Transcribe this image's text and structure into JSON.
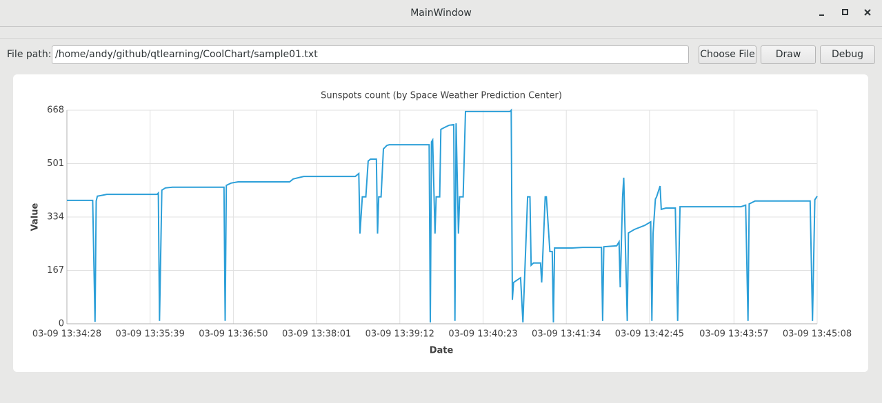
{
  "window": {
    "title": "MainWindow"
  },
  "form": {
    "file_label": "File path:",
    "file_path": "/home/andy/github/qtlearning/CoolChart/sample01.txt",
    "buttons": [
      "Choose File",
      "Draw",
      "Debug"
    ]
  },
  "chart_data": {
    "type": "line",
    "title": "Sunspots count (by Space Weather Prediction Center)",
    "x_label": "Date",
    "y_label": "Value",
    "color": "#2c9fd8",
    "grid": true,
    "xlim": [
      "03-09 13:34:28",
      "03-09 13:45:08"
    ],
    "xticks": [
      "03-09 13:34:28",
      "03-09 13:35:39",
      "03-09 13:36:50",
      "03-09 13:38:01",
      "03-09 13:39:12",
      "03-09 13:40:23",
      "03-09 13:41:34",
      "03-09 13:42:45",
      "03-09 13:43:57",
      "03-09 13:45:08"
    ],
    "ylim": [
      0,
      668
    ],
    "yticks": [
      0,
      167,
      334,
      501,
      668
    ],
    "x": [
      "03-09 13:34:28",
      "03-09 13:34:50",
      "03-09 13:34:52",
      "03-09 13:34:53",
      "03-09 13:34:54",
      "03-09 13:34:57",
      "03-09 13:35:02",
      "03-09 13:35:45",
      "03-09 13:35:46",
      "03-09 13:35:47",
      "03-09 13:35:49",
      "03-09 13:35:52",
      "03-09 13:35:58",
      "03-09 13:36:42",
      "03-09 13:36:43",
      "03-09 13:36:44",
      "03-09 13:36:48",
      "03-09 13:36:54",
      "03-09 13:37:38",
      "03-09 13:37:41",
      "03-09 13:37:50",
      "03-09 13:38:34",
      "03-09 13:38:37",
      "03-09 13:38:38",
      "03-09 13:38:40",
      "03-09 13:38:43",
      "03-09 13:38:45",
      "03-09 13:38:47",
      "03-09 13:38:52",
      "03-09 13:38:53",
      "03-09 13:38:54",
      "03-09 13:38:56",
      "03-09 13:38:58",
      "03-09 13:39:01",
      "03-09 13:39:03",
      "03-09 13:39:37",
      "03-09 13:39:38",
      "03-09 13:39:39",
      "03-09 13:39:40",
      "03-09 13:39:42",
      "03-09 13:39:43",
      "03-09 13:39:46",
      "03-09 13:39:47",
      "03-09 13:39:50",
      "03-09 13:39:54",
      "03-09 13:39:58",
      "03-09 13:39:59",
      "03-09 13:40:00",
      "03-09 13:40:02",
      "03-09 13:40:03",
      "03-09 13:40:06",
      "03-09 13:40:08",
      "03-09 13:40:46",
      "03-09 13:40:47",
      "03-09 13:40:48",
      "03-09 13:40:49",
      "03-09 13:40:55",
      "03-09 13:40:57",
      "03-09 13:41:01",
      "03-09 13:41:03",
      "03-09 13:41:04",
      "03-09 13:41:06",
      "03-09 13:41:12",
      "03-09 13:41:13",
      "03-09 13:41:16",
      "03-09 13:41:17",
      "03-09 13:41:20",
      "03-09 13:41:22",
      "03-09 13:41:23",
      "03-09 13:41:24",
      "03-09 13:41:39",
      "03-09 13:41:48",
      "03-09 13:42:04",
      "03-09 13:42:05",
      "03-09 13:42:06",
      "03-09 13:42:17",
      "03-09 13:42:19",
      "03-09 13:42:20",
      "03-09 13:42:22",
      "03-09 13:42:23",
      "03-09 13:42:26",
      "03-09 13:42:27",
      "03-09 13:42:32",
      "03-09 13:42:41",
      "03-09 13:42:46",
      "03-09 13:42:47",
      "03-09 13:42:48",
      "03-09 13:42:50",
      "03-09 13:42:51",
      "03-09 13:42:54",
      "03-09 13:42:55",
      "03-09 13:42:59",
      "03-09 13:43:07",
      "03-09 13:43:09",
      "03-09 13:43:11",
      "03-09 13:44:03",
      "03-09 13:44:07",
      "03-09 13:44:09",
      "03-09 13:44:10",
      "03-09 13:44:15",
      "03-09 13:45:02",
      "03-09 13:45:04",
      "03-09 13:45:06",
      "03-09 13:45:08"
    ],
    "values": [
      386,
      386,
      6,
      384,
      399,
      401,
      405,
      405,
      409,
      9,
      418,
      425,
      427,
      427,
      9,
      433,
      440,
      444,
      444,
      453,
      461,
      461,
      470,
      282,
      397,
      397,
      509,
      515,
      515,
      282,
      397,
      397,
      547,
      558,
      560,
      560,
      4,
      569,
      575,
      282,
      397,
      397,
      608,
      614,
      621,
      623,
      9,
      627,
      282,
      397,
      397,
      664,
      664,
      668,
      75,
      129,
      144,
      4,
      397,
      397,
      183,
      190,
      190,
      129,
      397,
      397,
      226,
      226,
      4,
      237,
      237,
      239,
      239,
      9,
      241,
      244,
      256,
      114,
      397,
      457,
      9,
      284,
      295,
      308,
      319,
      9,
      282,
      390,
      397,
      431,
      358,
      362,
      362,
      9,
      366,
      366,
      371,
      9,
      375,
      384,
      384,
      9,
      388,
      399
    ]
  }
}
